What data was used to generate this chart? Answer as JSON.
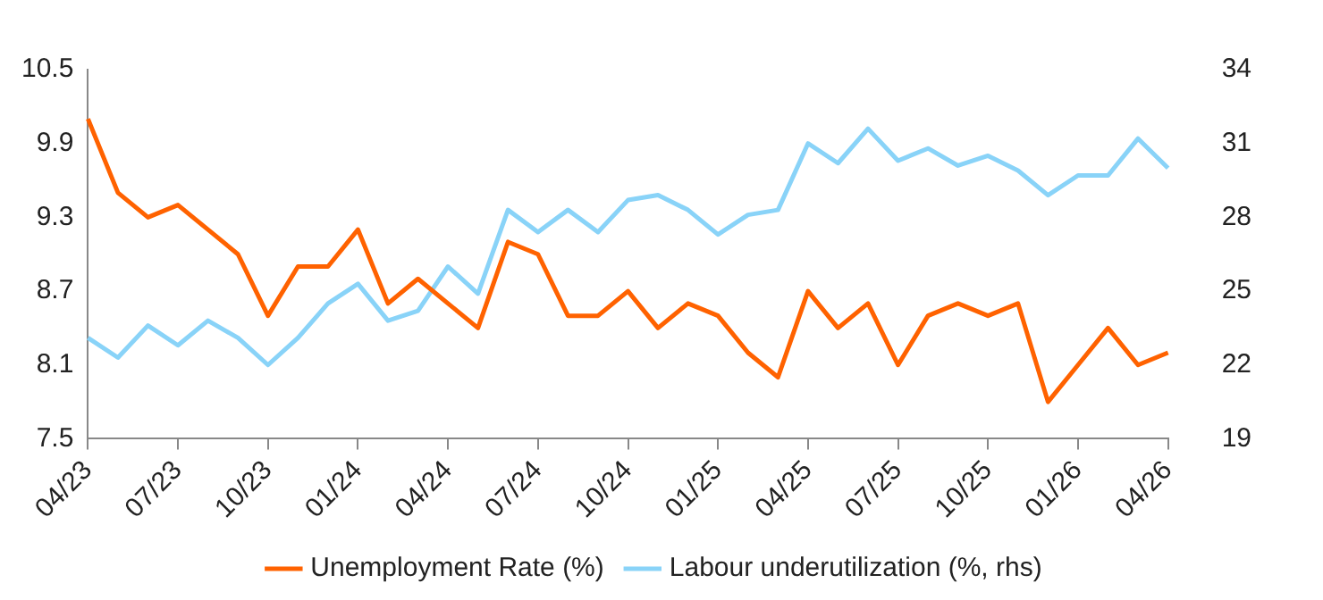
{
  "chart_data": {
    "type": "line",
    "categories": [
      "04/23",
      null,
      null,
      "07/23",
      null,
      null,
      "10/23",
      null,
      null,
      "01/24",
      null,
      null,
      "04/24",
      null,
      null,
      "07/24",
      null,
      null,
      "10/24",
      null,
      null,
      "01/25",
      null,
      null,
      "04/25",
      null,
      null,
      "07/25",
      null,
      null,
      "10/25",
      null,
      null,
      "01/26",
      null,
      null,
      "04/26"
    ],
    "series": [
      {
        "name": "Unemployment Rate (%)",
        "color": "#ff6200",
        "axis": "y",
        "values": [
          10.1,
          9.5,
          9.3,
          9.4,
          9.2,
          9.0,
          8.5,
          8.9,
          8.9,
          9.2,
          8.6,
          8.8,
          8.6,
          8.4,
          9.1,
          9.0,
          8.5,
          8.5,
          8.7,
          8.4,
          8.6,
          8.5,
          8.2,
          8.0,
          8.7,
          8.4,
          8.6,
          8.1,
          8.5,
          8.6,
          8.5,
          8.6,
          7.8,
          8.1,
          8.4,
          8.1,
          8.2
        ]
      },
      {
        "name": "Labour underutilization (%, rhs)",
        "color": "#89d3f8",
        "axis": "y2",
        "values": [
          23.1,
          22.3,
          23.6,
          22.8,
          23.8,
          23.1,
          22.0,
          23.1,
          24.5,
          25.3,
          23.8,
          24.2,
          26.0,
          24.9,
          28.3,
          27.4,
          28.3,
          27.4,
          28.7,
          28.9,
          28.3,
          27.3,
          28.1,
          28.3,
          31.0,
          30.2,
          31.6,
          30.3,
          30.8,
          30.1,
          30.5,
          29.9,
          28.9,
          29.7,
          29.7,
          31.2,
          30.0
        ]
      }
    ],
    "ylim": [
      7.5,
      10.5
    ],
    "yticks": [
      7.5,
      8.1,
      8.7,
      9.3,
      9.9,
      10.5
    ],
    "y2lim": [
      19,
      34
    ],
    "y2ticks": [
      19,
      22,
      25,
      28,
      31,
      34
    ],
    "grid": false,
    "legend": "bottom",
    "marker": "none",
    "line_style": "solid"
  }
}
